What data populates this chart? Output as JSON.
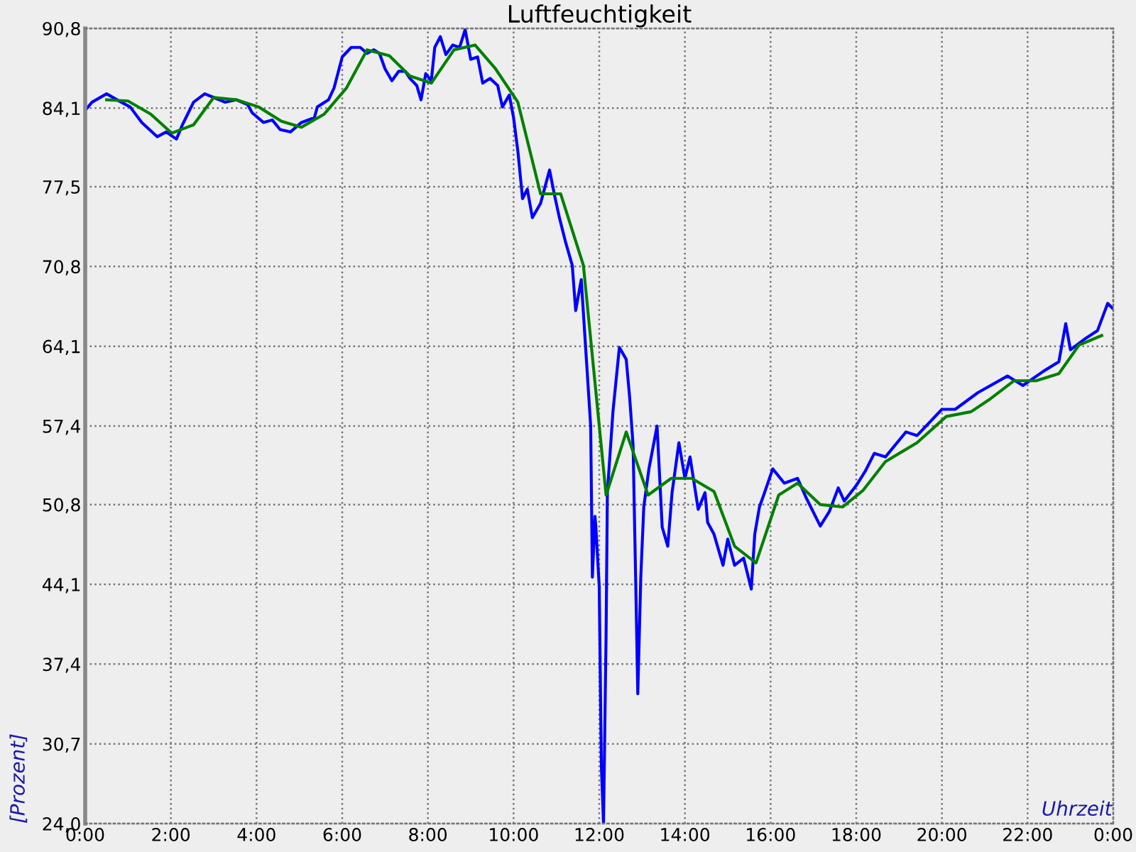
{
  "chart_data": {
    "type": "line",
    "title": "Luftfeuchtigkeit",
    "xlabel": "Uhrzeit",
    "ylabel": "[Prozent]",
    "xlim": [
      0,
      24
    ],
    "ylim": [
      24.0,
      90.8
    ],
    "xticks": [
      {
        "value": 0,
        "label": "0:00"
      },
      {
        "value": 2,
        "label": "2:00"
      },
      {
        "value": 4,
        "label": "4:00"
      },
      {
        "value": 6,
        "label": "6:00"
      },
      {
        "value": 8,
        "label": "8:00"
      },
      {
        "value": 10,
        "label": "10:00"
      },
      {
        "value": 12,
        "label": "12:00"
      },
      {
        "value": 14,
        "label": "14:00"
      },
      {
        "value": 16,
        "label": "16:00"
      },
      {
        "value": 18,
        "label": "18:00"
      },
      {
        "value": 20,
        "label": "20:00"
      },
      {
        "value": 22,
        "label": "22:00"
      },
      {
        "value": 24,
        "label": "0:00"
      }
    ],
    "yticks": [
      {
        "value": 24.0,
        "label": "24,0"
      },
      {
        "value": 30.7,
        "label": "30,7"
      },
      {
        "value": 37.4,
        "label": "37,4"
      },
      {
        "value": 44.1,
        "label": "44,1"
      },
      {
        "value": 50.8,
        "label": "50,8"
      },
      {
        "value": 57.4,
        "label": "57,4"
      },
      {
        "value": 64.1,
        "label": "64,1"
      },
      {
        "value": 70.8,
        "label": "70,8"
      },
      {
        "value": 77.5,
        "label": "77,5"
      },
      {
        "value": 84.1,
        "label": "84,1"
      },
      {
        "value": 90.8,
        "label": "90,8"
      }
    ],
    "grid": true,
    "legend": false,
    "line_style": "solid",
    "marker": "none",
    "series": [
      {
        "color": "#0000ff",
        "x": [
          0.02,
          0.16,
          0.5,
          0.84,
          1.05,
          1.32,
          1.68,
          1.89,
          2.13,
          2.27,
          2.53,
          2.79,
          3.0,
          3.26,
          3.53,
          3.79,
          3.9,
          4.16,
          4.37,
          4.55,
          4.79,
          5.05,
          5.35,
          5.42,
          5.68,
          5.81,
          6.0,
          6.21,
          6.42,
          6.58,
          6.74,
          6.87,
          7.0,
          7.16,
          7.32,
          7.47,
          7.58,
          7.74,
          7.84,
          7.95,
          8.08,
          8.16,
          8.29,
          8.42,
          8.58,
          8.74,
          8.87,
          9.0,
          9.16,
          9.28,
          9.45,
          9.63,
          9.74,
          9.9,
          10.0,
          10.1,
          10.21,
          10.32,
          10.44,
          10.63,
          10.84,
          10.95,
          11.07,
          11.21,
          11.37,
          11.45,
          11.58,
          11.7,
          11.8,
          11.84,
          11.9,
          11.92,
          12.0,
          12.05,
          12.1,
          12.16,
          12.19,
          12.32,
          12.47,
          12.63,
          12.71,
          12.79,
          12.86,
          12.9,
          12.97,
          13.04,
          13.16,
          13.35,
          13.47,
          13.6,
          13.7,
          13.86,
          14.0,
          14.12,
          14.31,
          14.47,
          14.53,
          14.68,
          14.89,
          15.0,
          15.16,
          15.37,
          15.55,
          15.63,
          15.74,
          15.84,
          16.05,
          16.32,
          16.63,
          16.84,
          17.16,
          17.37,
          17.58,
          17.72,
          18.0,
          18.21,
          18.42,
          18.68,
          19.16,
          19.42,
          20.0,
          20.31,
          20.84,
          21.53,
          21.89,
          22.37,
          22.73,
          22.89,
          23.0,
          23.37,
          23.63,
          23.87,
          23.98
        ],
        "values": [
          84.0,
          84.6,
          85.3,
          84.6,
          84.2,
          82.9,
          81.7,
          82.1,
          81.5,
          82.7,
          84.6,
          85.3,
          85.0,
          84.6,
          84.8,
          84.4,
          83.7,
          82.9,
          83.1,
          82.3,
          82.1,
          82.9,
          83.3,
          84.2,
          84.8,
          85.8,
          88.4,
          89.2,
          89.2,
          88.7,
          89.0,
          88.7,
          87.4,
          86.4,
          87.2,
          87.2,
          86.6,
          86.0,
          84.8,
          87.0,
          86.4,
          89.2,
          90.1,
          88.6,
          89.4,
          89.2,
          90.7,
          88.2,
          88.4,
          86.2,
          86.6,
          86.0,
          84.2,
          85.2,
          83.3,
          80.5,
          76.5,
          77.3,
          74.9,
          76.1,
          78.9,
          76.9,
          74.9,
          72.9,
          70.9,
          67.1,
          69.7,
          63.0,
          57.4,
          44.7,
          49.8,
          49.0,
          43.9,
          28.8,
          24.0,
          39.9,
          51.8,
          58.6,
          64.0,
          63.0,
          59.8,
          55.8,
          42.7,
          34.9,
          44.7,
          50.6,
          53.8,
          57.4,
          48.9,
          47.3,
          51.8,
          56.0,
          53.0,
          54.8,
          50.4,
          51.8,
          49.3,
          48.3,
          45.7,
          47.9,
          45.7,
          46.3,
          43.7,
          48.3,
          50.6,
          51.6,
          53.8,
          52.6,
          53.0,
          51.3,
          49.0,
          50.2,
          52.2,
          51.1,
          52.4,
          53.6,
          55.1,
          54.8,
          56.9,
          56.6,
          58.8,
          58.8,
          60.2,
          61.6,
          60.8,
          62.0,
          62.8,
          66.0,
          63.8,
          64.8,
          65.4,
          67.7,
          67.3
        ]
      },
      {
        "color": "#008000",
        "x": [
          0.5,
          1.0,
          1.53,
          2.02,
          2.53,
          3.0,
          3.53,
          4.05,
          4.58,
          5.05,
          5.58,
          6.1,
          6.58,
          7.1,
          7.58,
          8.08,
          8.61,
          9.1,
          9.58,
          10.1,
          10.63,
          11.1,
          11.63,
          12.16,
          12.63,
          13.14,
          13.68,
          14.16,
          14.68,
          15.16,
          15.66,
          16.19,
          16.63,
          17.16,
          17.68,
          18.16,
          18.68,
          19.42,
          20.1,
          20.68,
          21.1,
          21.68,
          22.2,
          22.73,
          23.2,
          23.73
        ],
        "values": [
          84.8,
          84.7,
          83.6,
          82.0,
          82.7,
          85.0,
          84.8,
          84.2,
          83.0,
          82.5,
          83.6,
          85.8,
          89.0,
          88.5,
          86.8,
          86.2,
          89.0,
          89.4,
          87.4,
          84.6,
          76.9,
          76.9,
          70.9,
          51.6,
          56.9,
          51.6,
          53.0,
          53.0,
          51.9,
          47.3,
          45.9,
          51.6,
          52.6,
          50.8,
          50.6,
          52.0,
          54.4,
          56.0,
          58.2,
          58.6,
          59.6,
          61.2,
          61.2,
          61.8,
          64.2,
          65.0
        ]
      }
    ]
  }
}
